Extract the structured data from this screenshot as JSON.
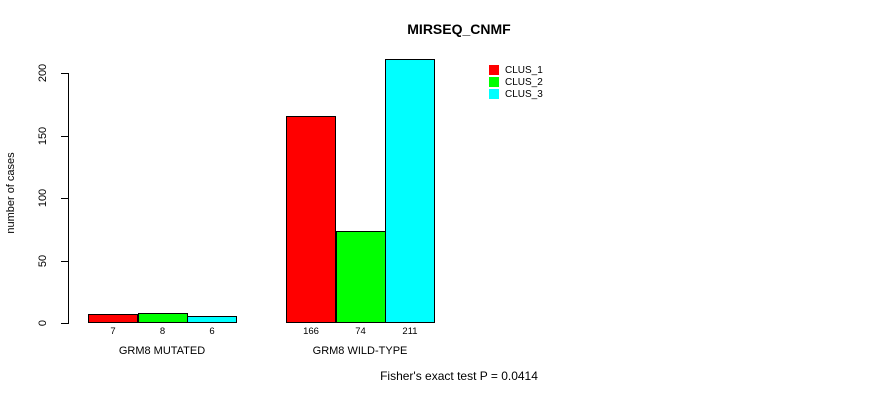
{
  "chart_data": {
    "type": "bar",
    "title": "MIRSEQ_CNMF",
    "xlabel": "",
    "ylabel": "number of cases",
    "yticks": [
      0,
      50,
      100,
      150,
      200
    ],
    "ylim": [
      0,
      211
    ],
    "grid": false,
    "background": "#FFFFFF",
    "axis_color": "#000000",
    "categories": [
      "GRM8 MUTATED",
      "GRM8 WILD-TYPE"
    ],
    "series": [
      {
        "name": "CLUS_1",
        "color": "#FF0000",
        "values": [
          7,
          166
        ]
      },
      {
        "name": "CLUS_2",
        "color": "#00FF00",
        "values": [
          8,
          74
        ]
      },
      {
        "name": "CLUS_3",
        "color": "#00FFFF",
        "values": [
          6,
          211
        ]
      }
    ],
    "bar_value_labels": [
      [
        "7",
        "8",
        "6"
      ],
      [
        "166",
        "74",
        "211"
      ]
    ],
    "legend_position": "top-right",
    "annotation": "Fisher's exact test P = 0.0414"
  }
}
